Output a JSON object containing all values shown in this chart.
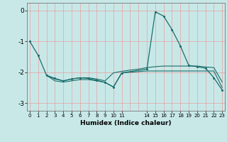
{
  "xlabel": "Humidex (Indice chaleur)",
  "xlim": [
    -0.3,
    23.3
  ],
  "ylim": [
    -3.25,
    0.25
  ],
  "background_color": "#c8e8e8",
  "grid_color": "#e8a0a0",
  "line_color": "#1a6e6a",
  "line1_x": [
    0,
    1,
    2,
    3,
    4,
    5,
    6,
    7,
    8,
    9,
    10,
    11,
    14,
    15,
    16,
    17,
    18,
    19,
    20,
    21,
    22,
    23
  ],
  "line1_y": [
    -1.0,
    -1.45,
    -2.1,
    -2.2,
    -2.28,
    -2.22,
    -2.18,
    -2.2,
    -2.26,
    -2.33,
    -2.48,
    -2.02,
    -1.9,
    -0.04,
    -0.18,
    -0.62,
    -1.15,
    -1.78,
    -1.82,
    -1.87,
    -2.18,
    -2.58
  ],
  "line2_x": [
    2,
    3,
    4,
    5,
    6,
    7,
    8,
    9,
    10,
    11,
    12,
    13,
    14,
    15,
    16,
    17,
    18,
    19,
    20,
    21,
    22,
    23
  ],
  "line2_y": [
    -2.1,
    -2.28,
    -2.32,
    -2.28,
    -2.24,
    -2.24,
    -2.28,
    -2.33,
    -2.48,
    -2.02,
    -2.0,
    -1.98,
    -1.96,
    -1.96,
    -1.96,
    -1.96,
    -1.96,
    -1.96,
    -1.96,
    -1.96,
    -1.96,
    -2.5
  ],
  "line3_x": [
    2,
    3,
    4,
    5,
    6,
    7,
    8,
    9,
    10,
    11,
    12,
    13,
    14,
    15,
    16,
    17,
    18,
    19,
    20,
    21,
    22,
    23
  ],
  "line3_y": [
    -2.1,
    -2.22,
    -2.28,
    -2.22,
    -2.18,
    -2.18,
    -2.22,
    -2.28,
    -2.02,
    -1.97,
    -1.93,
    -1.9,
    -1.85,
    -1.82,
    -1.8,
    -1.8,
    -1.8,
    -1.8,
    -1.8,
    -1.83,
    -1.85,
    -2.32
  ],
  "yticks": [
    0,
    -1,
    -2,
    -3
  ],
  "xtick_positions": [
    0,
    1,
    2,
    3,
    4,
    5,
    6,
    7,
    8,
    9,
    10,
    11,
    14,
    15,
    16,
    17,
    18,
    19,
    20,
    21,
    22,
    23
  ],
  "xtick_labels": [
    "0",
    "1",
    "2",
    "3",
    "4",
    "5",
    "6",
    "7",
    "8",
    "9",
    "10",
    "11",
    "14",
    "15",
    "16",
    "17",
    "18",
    "19",
    "20",
    "21",
    "22",
    "23"
  ],
  "grid_x_positions": [
    0,
    1,
    2,
    3,
    4,
    5,
    6,
    7,
    8,
    9,
    10,
    11,
    12,
    13,
    14,
    15,
    16,
    17,
    18,
    19,
    20,
    21,
    22,
    23
  ]
}
